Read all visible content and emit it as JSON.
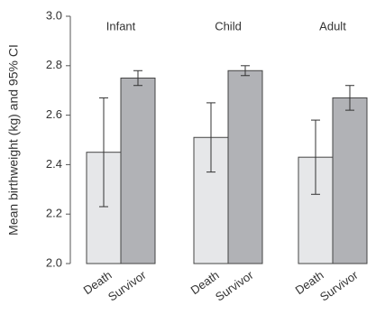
{
  "chart_data": {
    "type": "grouped-bar-error",
    "y_label": "Mean birthweight (kg) and 95% CI",
    "groups": [
      {
        "name": "Infant",
        "categories": [
          "Death",
          "Survivor"
        ],
        "values": [
          2.45,
          2.75
        ],
        "errors": [
          0.22,
          0.03
        ]
      },
      {
        "name": "Child",
        "categories": [
          "Death",
          "Survivor"
        ],
        "values": [
          2.51,
          2.78
        ],
        "errors": [
          0.14,
          0.02
        ]
      },
      {
        "name": "Adult",
        "categories": [
          "Death",
          "Survivor"
        ],
        "values": [
          2.43,
          2.67
        ],
        "errors": [
          0.15,
          0.05
        ]
      }
    ],
    "colors": [
      "#e6e7e9",
      "#b1b2b6"
    ],
    "ylim": [
      2.0,
      3.0
    ],
    "yticks": [
      {
        "value": 2.0,
        "label": "2.0"
      },
      2.2,
      2.4,
      2.6,
      2.8,
      {
        "value": 3.0,
        "label": "3.0"
      }
    ]
  }
}
